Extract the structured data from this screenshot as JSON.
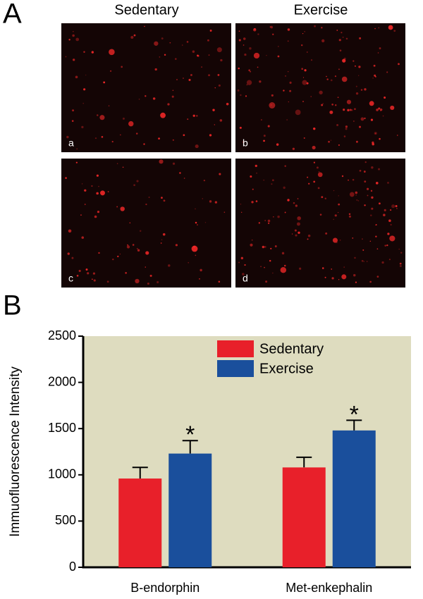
{
  "panel_a": {
    "label": "A",
    "columns": [
      "Sedentary",
      "Exercise"
    ],
    "images": [
      "a",
      "b",
      "c",
      "d"
    ]
  },
  "panel_b": {
    "label": "B"
  },
  "chart_data": {
    "type": "bar",
    "ylabel": "Immuofluorescence Intensity",
    "categories": [
      "B-endorphin",
      "Met-enkephalin"
    ],
    "series": [
      {
        "name": "Sedentary",
        "color": "#e8202a",
        "values": [
          960,
          1080
        ],
        "errors": [
          120,
          110
        ]
      },
      {
        "name": "Exercise",
        "color": "#1a4f9c",
        "values": [
          1230,
          1480
        ],
        "errors": [
          140,
          110
        ],
        "markers": [
          "*",
          "*"
        ]
      }
    ],
    "ylim": [
      0,
      2500
    ],
    "yticks": [
      0,
      500,
      1000,
      1500,
      2000,
      2500
    ],
    "legend": "top",
    "background": "#dedcbf"
  }
}
